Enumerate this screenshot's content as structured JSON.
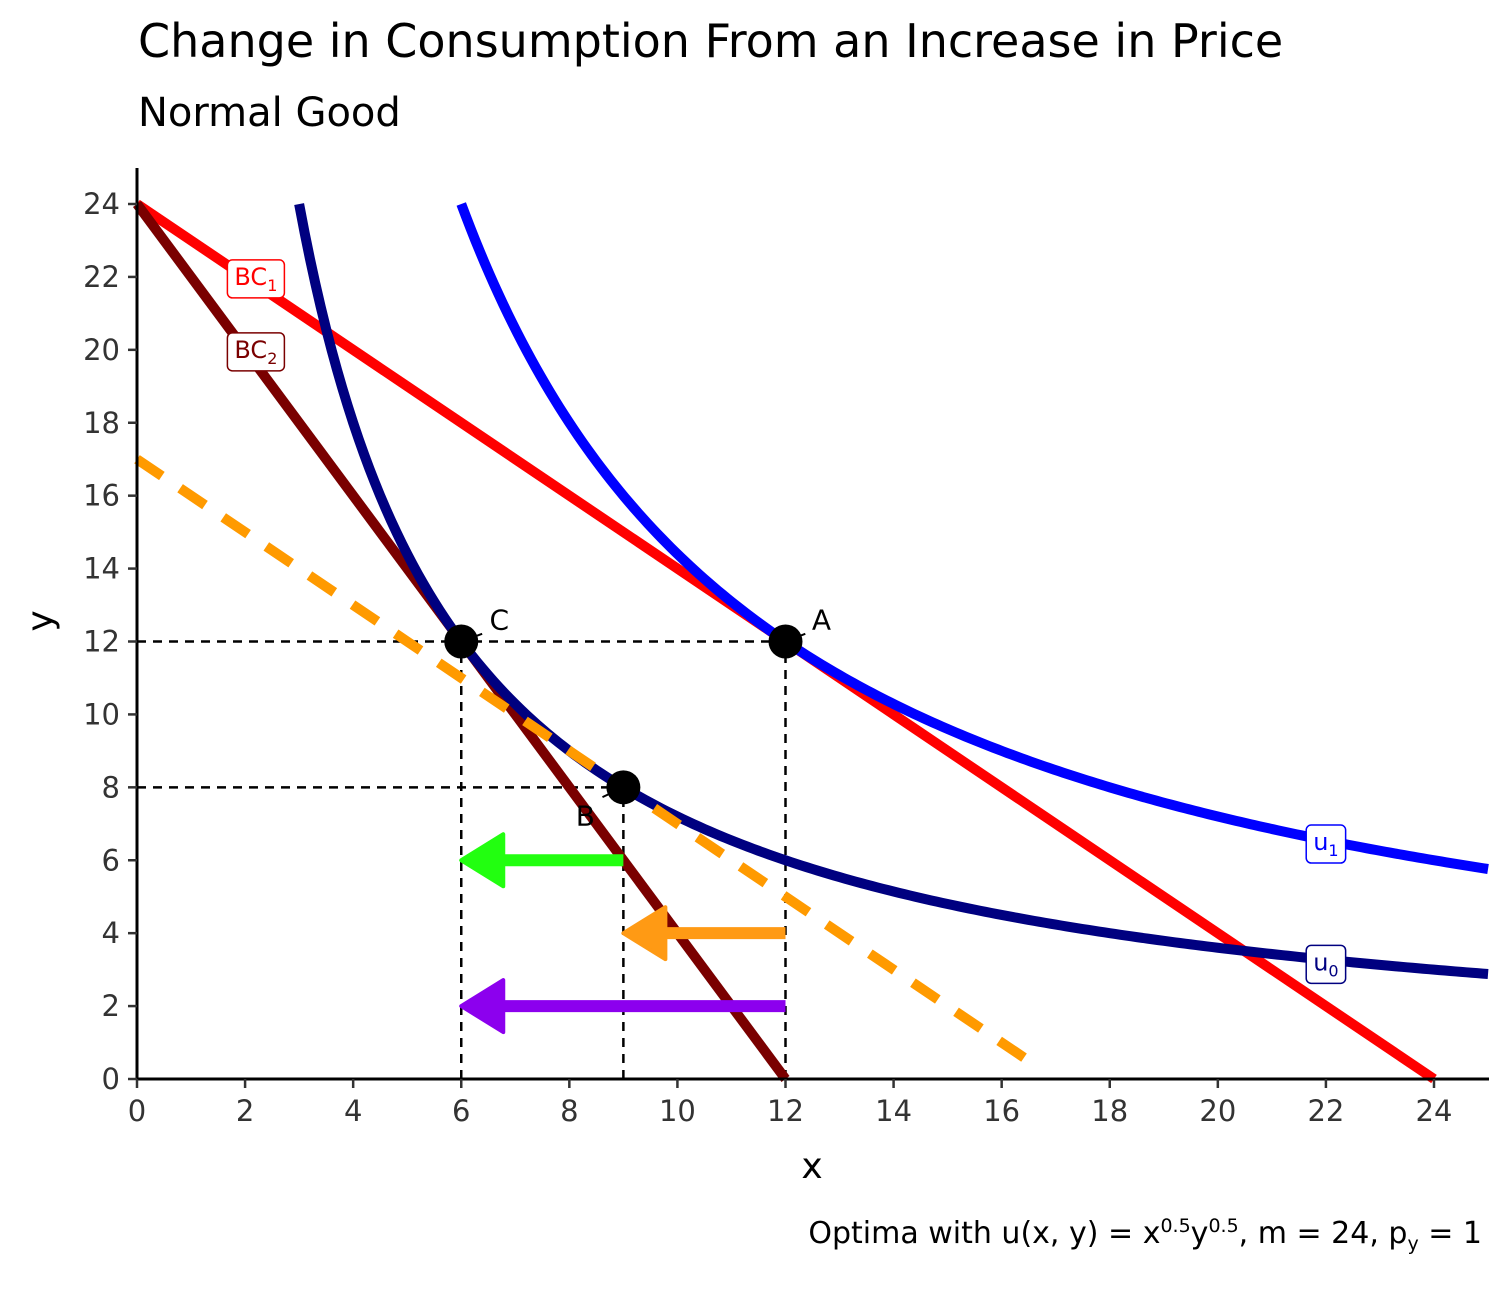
{
  "title": "Change in Consumption From an Increase in Price",
  "subtitle": "Normal Good",
  "caption": {
    "prefix": "Optima with u",
    "paren_open": "(",
    "args": "x, y",
    "paren_close": ")",
    "eq": " = x",
    "x_exp": "0.5",
    "y_base": "y",
    "y_exp": "0.5",
    "m_text": ", m = 24, p",
    "p_sub": "y",
    "p_val": " = 1"
  },
  "chart_data": {
    "type": "line",
    "xlabel": "x",
    "ylabel": "y",
    "xlim": [
      0,
      25
    ],
    "ylim": [
      0,
      25
    ],
    "x_ticks": [
      0,
      2,
      4,
      6,
      8,
      10,
      12,
      14,
      16,
      18,
      20,
      22,
      24
    ],
    "y_ticks": [
      0,
      2,
      4,
      6,
      8,
      10,
      12,
      14,
      16,
      18,
      20,
      22,
      24
    ],
    "grid": false,
    "series": [
      {
        "name": "BC1",
        "base": "BC",
        "sub": "1",
        "kind": "line",
        "points": [
          [
            0,
            24
          ],
          [
            24,
            0
          ]
        ],
        "color": "#ff0000",
        "label_at": [
          2.2,
          22
        ]
      },
      {
        "name": "BC2",
        "base": "BC",
        "sub": "2",
        "kind": "line",
        "points": [
          [
            0,
            24
          ],
          [
            12,
            0
          ]
        ],
        "color": "#7a0000",
        "label_at": [
          2.2,
          20
        ]
      },
      {
        "name": "u1",
        "base": "u",
        "sub": "1",
        "kind": "indifference",
        "utility": 12,
        "x_range": [
          6,
          25
        ],
        "color": "#0000ff",
        "label_at": [
          22,
          6.5
        ]
      },
      {
        "name": "u0",
        "base": "u",
        "sub": "0",
        "kind": "indifference",
        "utility": 8.485,
        "x_range": [
          3,
          25
        ],
        "color": "#000080",
        "label_at": [
          22,
          3.2
        ]
      },
      {
        "kind": "dashed-line",
        "points": [
          [
            0,
            17
          ],
          [
            16.5,
            0.5
          ]
        ],
        "color": "#ff9a00"
      }
    ],
    "points": [
      {
        "label": "A",
        "x": 12,
        "y": 12
      },
      {
        "label": "B",
        "x": 9,
        "y": 8
      },
      {
        "label": "C",
        "x": 6,
        "y": 12
      }
    ],
    "guides": [
      {
        "from": [
          0,
          12
        ],
        "to": [
          12,
          12
        ]
      },
      {
        "from": [
          0,
          8
        ],
        "to": [
          9,
          8
        ]
      },
      {
        "from": [
          6,
          0
        ],
        "to": [
          6,
          12
        ]
      },
      {
        "from": [
          9,
          0
        ],
        "to": [
          9,
          8
        ]
      },
      {
        "from": [
          12,
          0
        ],
        "to": [
          12,
          12
        ]
      }
    ],
    "arrows": [
      {
        "from": [
          9,
          6
        ],
        "to": [
          6,
          6
        ],
        "color": "#22ff10"
      },
      {
        "from": [
          12,
          4
        ],
        "to": [
          9,
          4
        ],
        "color": "#ff9a14"
      },
      {
        "from": [
          12,
          2
        ],
        "to": [
          6,
          2
        ],
        "color": "#8c00ee"
      }
    ]
  }
}
